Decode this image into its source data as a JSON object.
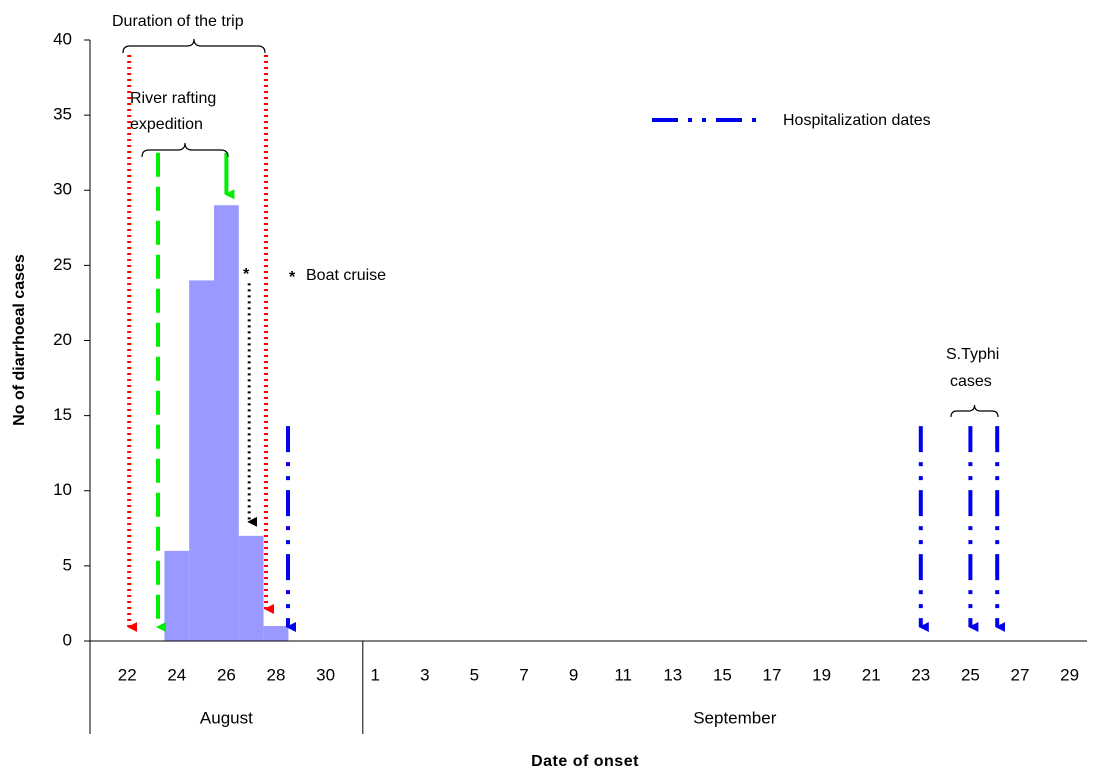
{
  "chart_data": {
    "type": "bar",
    "title": "",
    "xlabel": "Date of onset",
    "ylabel": "No of diarrhoeal cases",
    "ylim": [
      0,
      40
    ],
    "y_ticks": [
      0,
      5,
      10,
      15,
      20,
      25,
      30,
      35,
      40
    ],
    "months": [
      {
        "name": "August",
        "first_day": 21,
        "last_day": 31,
        "tick_labels": [
          "22",
          "24",
          "26",
          "28",
          "30"
        ]
      },
      {
        "name": "September",
        "first_day": 1,
        "last_day": 30,
        "tick_labels": [
          "1",
          "3",
          "5",
          "7",
          "9",
          "11",
          "13",
          "15",
          "17",
          "19",
          "21",
          "23",
          "25",
          "27",
          "29"
        ]
      }
    ],
    "bars": [
      {
        "date": "Aug 24",
        "value": 6
      },
      {
        "date": "Aug 25",
        "value": 24
      },
      {
        "date": "Aug 26",
        "value": 29
      },
      {
        "date": "Aug 27",
        "value": 7
      },
      {
        "date": "Aug 28",
        "value": 1
      }
    ],
    "legend": {
      "label": "Hospitalization dates",
      "placement": "top-right"
    },
    "boat_cruise_legend": {
      "symbol": "*",
      "label": "Boat cruise"
    },
    "events": {
      "trip": {
        "label": "Duration of the trip",
        "start": "Aug 22",
        "end": "Aug 28",
        "color": "#ff0000"
      },
      "rafting": {
        "label_line1": "River rafting",
        "label_line2": "expedition",
        "start": "Aug 23",
        "end": "Aug 26",
        "color": "#00ee00"
      },
      "boat_cruise": {
        "symbol": "*",
        "date": "Aug 27",
        "color": "#000000"
      },
      "hospitalization": {
        "dates": [
          "Aug 28",
          "Sep 23",
          "Sep 25",
          "Sep 26"
        ],
        "color": "#0000ee"
      },
      "typhi": {
        "label_line1": "S.Typhi",
        "label_line2": "cases",
        "dates": [
          "Sep 25",
          "Sep 26"
        ]
      }
    },
    "colors": {
      "bar": "#9999ff",
      "trip": "#ff0000",
      "rafting": "#00ee00",
      "hospital": "#0000ee",
      "cruise": "#000000"
    },
    "grid": false
  }
}
